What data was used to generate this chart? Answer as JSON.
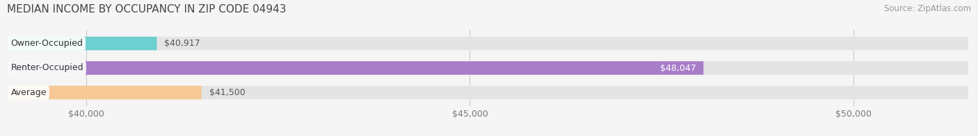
{
  "title": "MEDIAN INCOME BY OCCUPANCY IN ZIP CODE 04943",
  "source": "Source: ZipAtlas.com",
  "categories": [
    "Owner-Occupied",
    "Renter-Occupied",
    "Average"
  ],
  "values": [
    40917,
    48047,
    41500
  ],
  "bar_colors": [
    "#6dcfcf",
    "#a87dc8",
    "#f5c895"
  ],
  "label_colors": [
    "#444444",
    "#ffffff",
    "#444444"
  ],
  "xmin": 39000,
  "xmax": 51500,
  "xticks": [
    40000,
    45000,
    50000
  ],
  "xlabels": [
    "$40,000",
    "$45,000",
    "$50,000"
  ],
  "background_color": "#f5f5f5",
  "bar_background_color": "#e4e4e4",
  "bar_height": 0.55,
  "title_fontsize": 11,
  "source_fontsize": 8.5,
  "label_fontsize": 9,
  "tick_fontsize": 9
}
